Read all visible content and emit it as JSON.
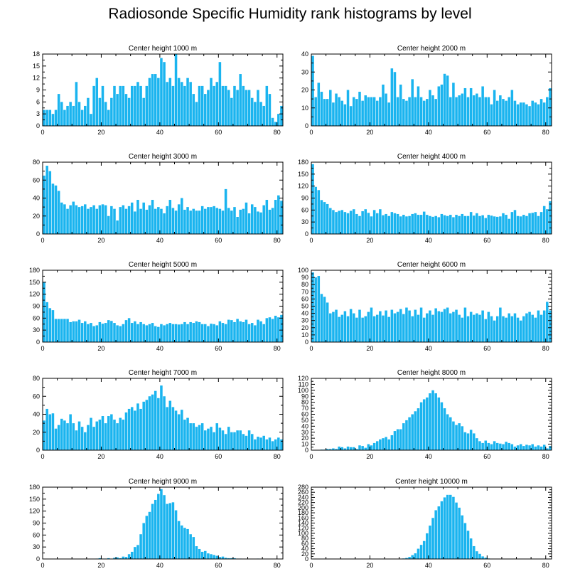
{
  "title": "Radiosonde Specific Humidity rank histograms by level",
  "bar_color": "#1ab4ef",
  "chart_data": [
    {
      "type": "bar",
      "title": "Center height 1000 m",
      "xlim": [
        0,
        82
      ],
      "ylim": [
        0,
        18
      ],
      "xticks": [
        0,
        20,
        40,
        60,
        80
      ],
      "yticks": [
        0,
        3,
        6,
        9,
        12,
        15,
        18
      ],
      "values": [
        4,
        4,
        4,
        3,
        4,
        8,
        6,
        4,
        5,
        6,
        5,
        11,
        6,
        4,
        5,
        7,
        3,
        10,
        12,
        7,
        10,
        6,
        4,
        7,
        10,
        8,
        10,
        10,
        8,
        7,
        10,
        10,
        11,
        10,
        7,
        10,
        12,
        13,
        13,
        12,
        17,
        16,
        11,
        12,
        10,
        18,
        12,
        11,
        10,
        12,
        11,
        8,
        6,
        10,
        10,
        8,
        9,
        12,
        10,
        11,
        16,
        10,
        10,
        9,
        7,
        10,
        9,
        13,
        10,
        9,
        9,
        7,
        6,
        9,
        6,
        5,
        10,
        8,
        2,
        1,
        3,
        5
      ]
    },
    {
      "type": "bar",
      "title": "Center height 2000 m",
      "xlim": [
        0,
        82
      ],
      "ylim": [
        0,
        40
      ],
      "xticks": [
        0,
        20,
        40,
        60,
        80
      ],
      "yticks": [
        0,
        10,
        20,
        30,
        40
      ],
      "values": [
        39,
        16,
        24,
        19,
        15,
        15,
        20,
        13,
        18,
        16,
        14,
        12,
        20,
        11,
        16,
        15,
        19,
        14,
        17,
        16,
        16,
        16,
        14,
        16,
        23,
        18,
        13,
        32,
        30,
        16,
        23,
        15,
        14,
        16,
        26,
        16,
        22,
        16,
        14,
        15,
        20,
        17,
        15,
        22,
        23,
        29,
        28,
        16,
        24,
        16,
        17,
        18,
        21,
        16,
        21,
        17,
        18,
        16,
        22,
        16,
        16,
        12,
        20,
        14,
        17,
        15,
        14,
        16,
        20,
        14,
        12,
        13,
        13,
        12,
        11,
        14,
        13,
        12,
        15,
        13,
        16,
        21
      ]
    },
    {
      "type": "bar",
      "title": "Center height 3000 m",
      "xlim": [
        0,
        82
      ],
      "ylim": [
        0,
        80
      ],
      "xticks": [
        0,
        20,
        40,
        60,
        80
      ],
      "yticks": [
        0,
        20,
        40,
        60,
        80
      ],
      "values": [
        65,
        76,
        70,
        56,
        54,
        48,
        35,
        33,
        28,
        32,
        36,
        32,
        30,
        31,
        33,
        28,
        30,
        32,
        28,
        32,
        33,
        32,
        20,
        31,
        28,
        15,
        30,
        32,
        28,
        31,
        35,
        25,
        38,
        28,
        35,
        27,
        32,
        38,
        28,
        30,
        28,
        23,
        31,
        38,
        29,
        26,
        33,
        40,
        27,
        30,
        26,
        28,
        26,
        26,
        31,
        28,
        30,
        30,
        31,
        29,
        28,
        26,
        50,
        29,
        26,
        30,
        19,
        27,
        28,
        35,
        23,
        33,
        30,
        25,
        24,
        32,
        38,
        27,
        29,
        38,
        43,
        37
      ]
    },
    {
      "type": "bar",
      "title": "Center height 4000 m",
      "xlim": [
        0,
        82
      ],
      "ylim": [
        0,
        180
      ],
      "xticks": [
        0,
        20,
        40,
        60,
        80
      ],
      "yticks": [
        0,
        30,
        60,
        90,
        120,
        150,
        180
      ],
      "values": [
        175,
        118,
        110,
        85,
        80,
        75,
        65,
        60,
        55,
        58,
        60,
        55,
        52,
        58,
        62,
        50,
        45,
        57,
        62,
        53,
        44,
        60,
        52,
        62,
        47,
        50,
        45,
        55,
        52,
        50,
        44,
        48,
        44,
        45,
        50,
        52,
        48,
        48,
        56,
        48,
        45,
        43,
        45,
        42,
        50,
        47,
        45,
        48,
        42,
        48,
        45,
        50,
        45,
        45,
        55,
        46,
        52,
        45,
        47,
        40,
        48,
        46,
        44,
        43,
        44,
        52,
        48,
        38,
        55,
        60,
        45,
        44,
        48,
        45,
        52,
        53,
        55,
        45,
        55,
        70,
        62,
        82
      ]
    },
    {
      "type": "bar",
      "title": "Center height 5000 m",
      "xlim": [
        0,
        82
      ],
      "ylim": [
        0,
        180
      ],
      "xticks": [
        0,
        20,
        40,
        60,
        80
      ],
      "yticks": [
        0,
        30,
        60,
        90,
        120,
        150,
        180
      ],
      "values": [
        150,
        100,
        85,
        80,
        58,
        58,
        58,
        58,
        58,
        50,
        52,
        52,
        56,
        48,
        52,
        45,
        48,
        40,
        42,
        50,
        46,
        48,
        55,
        53,
        48,
        42,
        40,
        45,
        55,
        60,
        48,
        52,
        45,
        50,
        45,
        42,
        45,
        48,
        40,
        38,
        45,
        42,
        45,
        48,
        45,
        45,
        44,
        45,
        50,
        45,
        50,
        48,
        52,
        50,
        45,
        45,
        40,
        46,
        45,
        42,
        52,
        48,
        45,
        56,
        55,
        50,
        58,
        52,
        50,
        56,
        45,
        48,
        42,
        56,
        52,
        45,
        60,
        62,
        58,
        66,
        62,
        68
      ]
    },
    {
      "type": "bar",
      "title": "Center height 6000 m",
      "xlim": [
        0,
        82
      ],
      "ylim": [
        0,
        100
      ],
      "xticks": [
        0,
        20,
        40,
        60,
        80
      ],
      "yticks": [
        0,
        10,
        20,
        30,
        40,
        50,
        60,
        70,
        80,
        90,
        100
      ],
      "values": [
        97,
        90,
        92,
        67,
        63,
        55,
        40,
        42,
        45,
        35,
        38,
        43,
        36,
        46,
        40,
        34,
        45,
        34,
        36,
        42,
        48,
        36,
        38,
        43,
        37,
        44,
        35,
        45,
        40,
        42,
        46,
        39,
        48,
        44,
        36,
        45,
        38,
        48,
        34,
        40,
        44,
        38,
        47,
        43,
        42,
        46,
        48,
        40,
        42,
        45,
        38,
        34,
        48,
        36,
        42,
        38,
        40,
        38,
        44,
        32,
        42,
        36,
        30,
        36,
        48,
        36,
        34,
        40,
        36,
        40,
        34,
        30,
        36,
        40,
        42,
        38,
        34,
        44,
        38,
        44,
        56,
        44
      ]
    },
    {
      "type": "bar",
      "title": "Center height 7000 m",
      "xlim": [
        0,
        82
      ],
      "ylim": [
        0,
        80
      ],
      "xticks": [
        0,
        20,
        40,
        60,
        80
      ],
      "yticks": [
        0,
        20,
        40,
        60,
        80
      ],
      "values": [
        33,
        46,
        40,
        41,
        24,
        28,
        35,
        33,
        30,
        40,
        30,
        22,
        32,
        26,
        20,
        28,
        36,
        26,
        32,
        34,
        38,
        30,
        38,
        40,
        34,
        30,
        36,
        34,
        42,
        46,
        48,
        44,
        52,
        46,
        54,
        56,
        60,
        62,
        66,
        58,
        72,
        60,
        48,
        55,
        48,
        44,
        40,
        45,
        34,
        36,
        30,
        30,
        26,
        28,
        30,
        22,
        24,
        26,
        20,
        30,
        25,
        22,
        18,
        26,
        20,
        20,
        22,
        22,
        18,
        16,
        22,
        18,
        12,
        15,
        14,
        16,
        12,
        14,
        10,
        12,
        14,
        12
      ]
    },
    {
      "type": "bar",
      "title": "Center height 8000 m",
      "xlim": [
        0,
        82
      ],
      "ylim": [
        0,
        120
      ],
      "xticks": [
        0,
        20,
        40,
        60,
        80
      ],
      "yticks": [
        0,
        10,
        20,
        30,
        40,
        50,
        60,
        70,
        80,
        90,
        100,
        110,
        120
      ],
      "values": [
        0,
        0,
        0,
        1,
        1,
        2,
        2,
        3,
        2,
        6,
        5,
        3,
        6,
        5,
        5,
        2,
        8,
        7,
        4,
        10,
        8,
        12,
        15,
        18,
        20,
        22,
        18,
        25,
        32,
        35,
        35,
        45,
        50,
        55,
        60,
        65,
        70,
        80,
        85,
        88,
        95,
        100,
        95,
        88,
        80,
        70,
        60,
        55,
        48,
        42,
        45,
        40,
        30,
        28,
        34,
        28,
        20,
        15,
        12,
        16,
        12,
        10,
        15,
        12,
        11,
        10,
        14,
        12,
        10,
        6,
        8,
        10,
        7,
        9,
        8,
        10,
        6,
        8,
        6,
        9,
        3,
        7
      ]
    },
    {
      "type": "bar",
      "title": "Center height 9000 m",
      "xlim": [
        0,
        82
      ],
      "ylim": [
        0,
        180
      ],
      "xticks": [
        0,
        20,
        40,
        60,
        80
      ],
      "yticks": [
        0,
        30,
        60,
        90,
        120,
        150,
        180
      ],
      "values": [
        0,
        0,
        0,
        0,
        0,
        0,
        0,
        0,
        0,
        0,
        0,
        0,
        0,
        0,
        0,
        0,
        0,
        0,
        1,
        2,
        1,
        1,
        2,
        0,
        3,
        4,
        2,
        6,
        5,
        12,
        18,
        30,
        35,
        62,
        90,
        108,
        118,
        138,
        148,
        163,
        175,
        160,
        138,
        140,
        142,
        122,
        95,
        84,
        78,
        75,
        62,
        55,
        32,
        25,
        18,
        20,
        14,
        12,
        10,
        8,
        5,
        6,
        3,
        2,
        2,
        2,
        1,
        1,
        0,
        0,
        0,
        0,
        0,
        1,
        0,
        0,
        0,
        0,
        0,
        0,
        0,
        0
      ]
    },
    {
      "type": "bar",
      "title": "Center height 10000 m",
      "xlim": [
        0,
        82
      ],
      "ylim": [
        0,
        280
      ],
      "xticks": [
        0,
        20,
        40,
        60,
        80
      ],
      "yticks": [
        0,
        20,
        40,
        60,
        80,
        100,
        120,
        140,
        160,
        180,
        200,
        220,
        240,
        260,
        280
      ],
      "values": [
        0,
        0,
        0,
        0,
        0,
        0,
        0,
        0,
        0,
        0,
        0,
        0,
        0,
        0,
        0,
        0,
        0,
        0,
        0,
        0,
        0,
        0,
        0,
        0,
        0,
        0,
        0,
        0,
        0,
        0,
        1,
        2,
        4,
        8,
        15,
        22,
        40,
        55,
        70,
        100,
        130,
        160,
        190,
        205,
        225,
        240,
        250,
        250,
        242,
        220,
        200,
        170,
        140,
        110,
        80,
        50,
        30,
        20,
        10,
        5,
        2,
        1,
        0,
        0,
        0,
        0,
        0,
        0,
        0,
        0,
        0,
        0,
        0,
        0,
        0,
        0,
        0,
        0,
        0,
        0,
        0,
        0
      ]
    }
  ]
}
